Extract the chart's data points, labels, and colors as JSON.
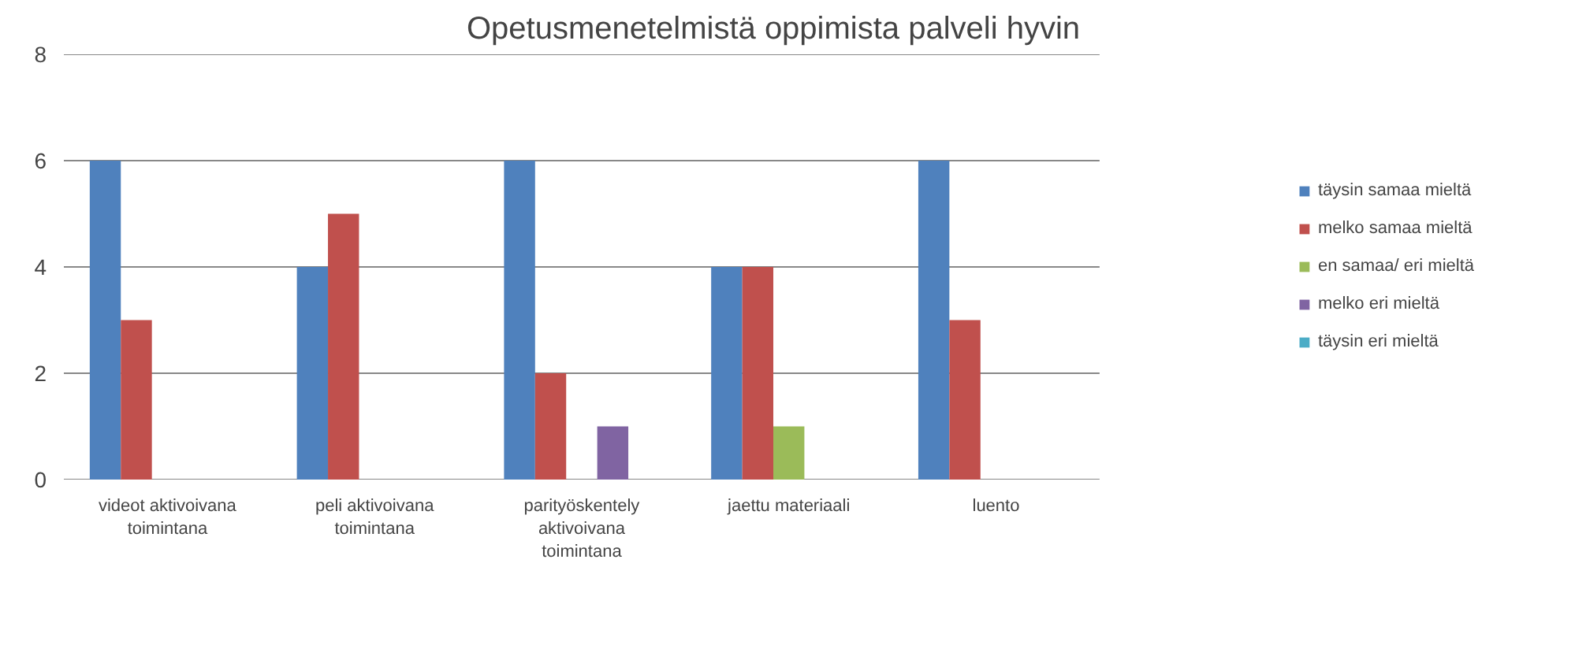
{
  "chart_data": {
    "type": "bar",
    "title": "Opetusmenetelmistä oppimista palveli hyvin",
    "categories": [
      "videot aktivoivana toimintana",
      "peli aktivoivana toimintana",
      "parityöskentely aktivoivana toimintana",
      "jaettu materiaali",
      "luento"
    ],
    "series": [
      {
        "name": "täysin samaa mieltä",
        "color": "#4f81bd",
        "values": [
          6,
          4,
          6,
          4,
          6
        ]
      },
      {
        "name": "melko samaa mieltä",
        "color": "#c0504d",
        "values": [
          3,
          5,
          2,
          4,
          3
        ]
      },
      {
        "name": "en samaa/ eri mieltä",
        "color": "#9bbb59",
        "values": [
          0,
          0,
          0,
          1,
          0
        ]
      },
      {
        "name": "melko eri mieltä",
        "color": "#8064a2",
        "values": [
          0,
          0,
          1,
          0,
          0
        ]
      },
      {
        "name": "täysin eri mieltä",
        "color": "#4bacc6",
        "values": [
          0,
          0,
          0,
          0,
          0
        ]
      }
    ],
    "ylim": [
      0,
      8
    ],
    "yticks": [
      0,
      2,
      4,
      6,
      8
    ],
    "grid": "y",
    "legend": "right"
  }
}
